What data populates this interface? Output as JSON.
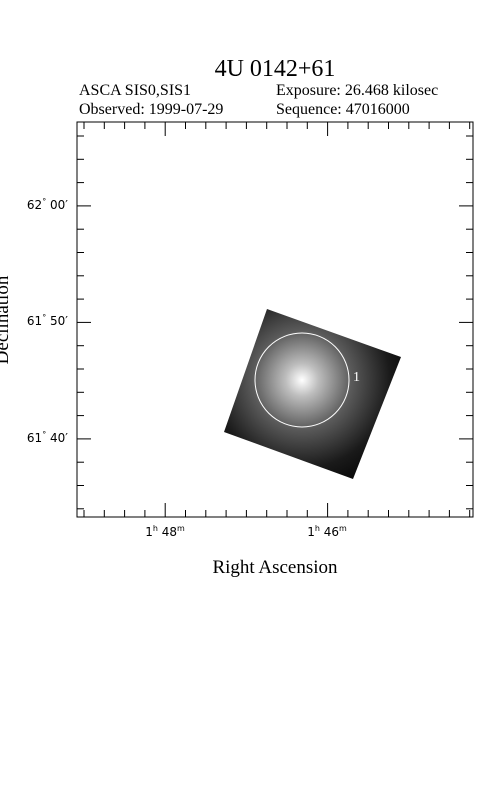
{
  "title": "4U 0142+61",
  "header": {
    "instrument": "ASCA SIS0,SIS1",
    "exposure": "Exposure: 26.468 kilosec",
    "observed": "Observed: 1999-07-29",
    "sequence": "Sequence: 47016000"
  },
  "plot": {
    "x_label": "Right Ascension",
    "y_label": "Declination",
    "x_ticks": [
      [
        "1",
        "h",
        " 48",
        "m"
      ],
      [
        "1",
        "h",
        " 46",
        "m"
      ]
    ],
    "y_ticks": [
      [
        "62",
        "°",
        " 00′"
      ],
      [
        "61",
        "°",
        " 50′"
      ],
      [
        "61",
        "°",
        " 40′"
      ]
    ],
    "source_label": "1"
  }
}
